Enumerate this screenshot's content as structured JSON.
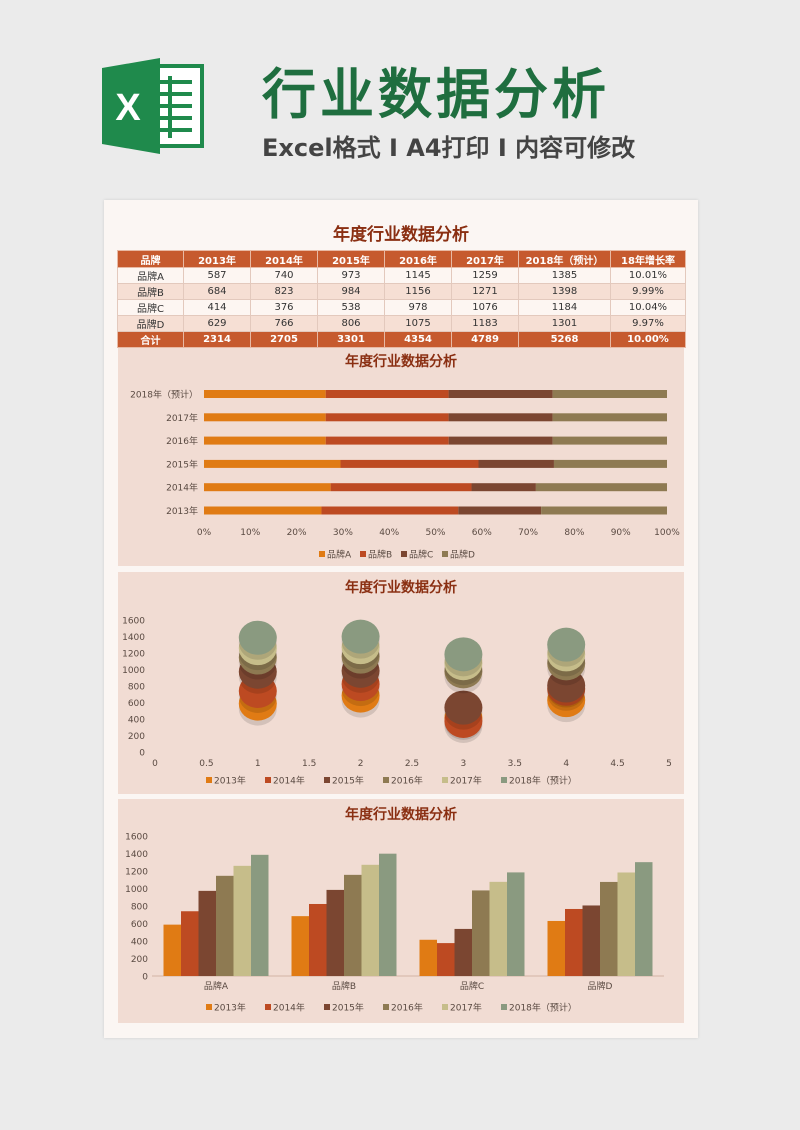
{
  "header": {
    "logo_letter": "X",
    "title": "行业数据分析",
    "subtitle": "Excel格式 Ⅰ A4打印 Ⅰ 内容可修改"
  },
  "sheet": {
    "title": "年度行业数据分析",
    "columns": [
      "品牌",
      "2013年",
      "2014年",
      "2015年",
      "2016年",
      "2017年",
      "2018年（预计）",
      "18年增长率"
    ],
    "rows": [
      [
        "品牌A",
        "587",
        "740",
        "973",
        "1145",
        "1259",
        "1385",
        "10.01%"
      ],
      [
        "品牌B",
        "684",
        "823",
        "984",
        "1156",
        "1271",
        "1398",
        "9.99%"
      ],
      [
        "品牌C",
        "414",
        "376",
        "538",
        "978",
        "1076",
        "1184",
        "10.04%"
      ],
      [
        "品牌D",
        "629",
        "766",
        "806",
        "1075",
        "1183",
        "1301",
        "9.97%"
      ]
    ],
    "total": [
      "合计",
      "2314",
      "2705",
      "3301",
      "4354",
      "4789",
      "5268",
      "10.00%"
    ]
  },
  "colors": {
    "accent": "#c65a2e",
    "brand_green": "#1f6e3f",
    "panel_bg": "#f1dcd3",
    "series": [
      "#e07b14",
      "#bd4a22",
      "#7b4631",
      "#8e7a52",
      "#c6bd8a",
      "#8a9a80"
    ]
  },
  "chart_data": [
    {
      "type": "bar",
      "orientation": "horizontal",
      "stacked": "percent",
      "title": "年度行业数据分析",
      "categories": [
        "2018年（预计）",
        "2017年",
        "2016年",
        "2015年",
        "2014年",
        "2013年"
      ],
      "series": [
        {
          "name": "品牌A",
          "values": [
            1385,
            1259,
            1145,
            973,
            740,
            587
          ]
        },
        {
          "name": "品牌B",
          "values": [
            1398,
            1271,
            1156,
            984,
            823,
            684
          ]
        },
        {
          "name": "品牌C",
          "values": [
            1184,
            1076,
            978,
            538,
            376,
            414
          ]
        },
        {
          "name": "品牌D",
          "values": [
            1301,
            1183,
            1075,
            806,
            766,
            629
          ]
        }
      ],
      "x_ticks": [
        "0%",
        "10%",
        "20%",
        "30%",
        "40%",
        "50%",
        "60%",
        "70%",
        "80%",
        "90%",
        "100%"
      ],
      "legend": "bottom"
    },
    {
      "type": "scatter",
      "title": "年度行业数据分析",
      "x_ticks": [
        "0",
        "0.5",
        "1",
        "1.5",
        "2",
        "2.5",
        "3",
        "3.5",
        "4",
        "4.5",
        "5"
      ],
      "y_ticks": [
        "0",
        "200",
        "400",
        "600",
        "800",
        "1000",
        "1200",
        "1400",
        "1600"
      ],
      "xlim": [
        0,
        5
      ],
      "ylim": [
        0,
        1600
      ],
      "x": [
        1,
        2,
        3,
        4
      ],
      "series": [
        {
          "name": "2013年",
          "values": [
            587,
            684,
            414,
            629
          ]
        },
        {
          "name": "2014年",
          "values": [
            740,
            823,
            376,
            766
          ]
        },
        {
          "name": "2015年",
          "values": [
            973,
            984,
            538,
            806
          ]
        },
        {
          "name": "2016年",
          "values": [
            1145,
            1156,
            978,
            1075
          ]
        },
        {
          "name": "2017年",
          "values": [
            1259,
            1271,
            1076,
            1183
          ]
        },
        {
          "name": "2018年（预计）",
          "values": [
            1385,
            1398,
            1184,
            1301
          ]
        }
      ],
      "legend": "bottom"
    },
    {
      "type": "bar",
      "title": "年度行业数据分析",
      "categories": [
        "品牌A",
        "品牌B",
        "品牌C",
        "品牌D"
      ],
      "y_ticks": [
        "0",
        "200",
        "400",
        "600",
        "800",
        "1000",
        "1200",
        "1400",
        "1600"
      ],
      "ylim": [
        0,
        1600
      ],
      "series": [
        {
          "name": "2013年",
          "values": [
            587,
            684,
            414,
            629
          ]
        },
        {
          "name": "2014年",
          "values": [
            740,
            823,
            376,
            766
          ]
        },
        {
          "name": "2015年",
          "values": [
            973,
            984,
            538,
            806
          ]
        },
        {
          "name": "2016年",
          "values": [
            1145,
            1156,
            978,
            1075
          ]
        },
        {
          "name": "2017年",
          "values": [
            1259,
            1271,
            1076,
            1183
          ]
        },
        {
          "name": "2018年（预计）",
          "values": [
            1385,
            1398,
            1184,
            1301
          ]
        }
      ],
      "legend": "bottom"
    }
  ]
}
